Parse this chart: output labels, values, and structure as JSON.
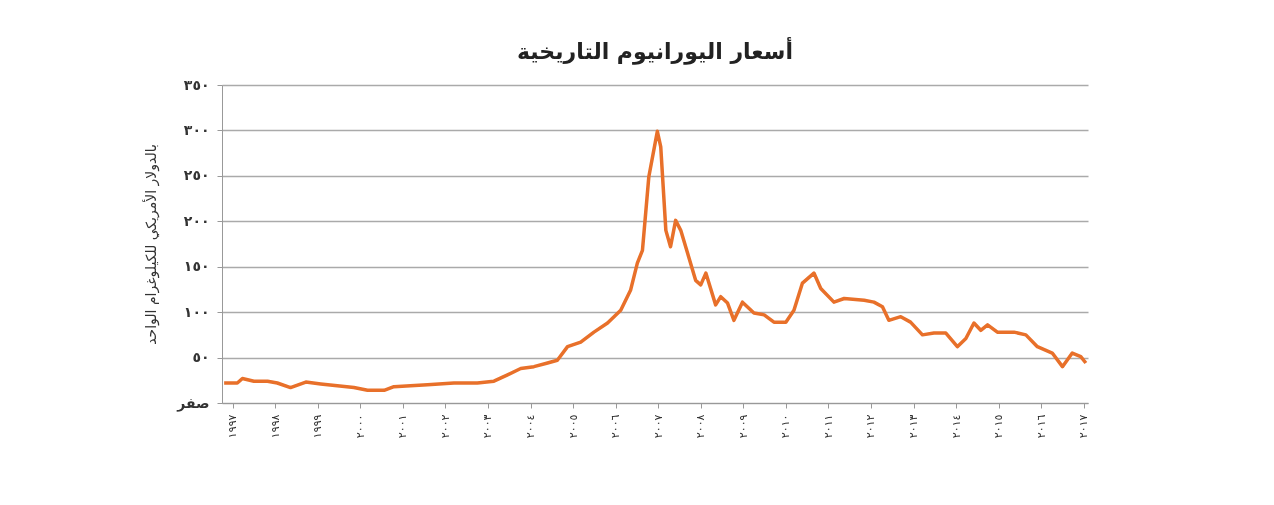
{
  "chart_data": {
    "type": "line",
    "title": "أسعار اليورانيوم التاريخية",
    "ylabel": "بالدولار الأمريكي للكيلوغرام الواحد",
    "x": [
      1996.8,
      1997.11,
      1997.23,
      1997.5,
      1997.82,
      1998.05,
      1998.36,
      1998.72,
      1999.07,
      1999.46,
      1999.85,
      2000.17,
      2000.56,
      2000.79,
      2001.18,
      2001.58,
      2002.2,
      2002.75,
      2003.14,
      2003.46,
      2003.77,
      2004.08,
      2004.4,
      2004.63,
      2004.87,
      2005.18,
      2005.49,
      2005.81,
      2006.12,
      2006.35,
      2006.51,
      2006.63,
      2006.78,
      2006.98,
      2007.06,
      2007.18,
      2007.29,
      2007.41,
      2007.53,
      2007.69,
      2007.88,
      2008.0,
      2008.12,
      2008.35,
      2008.47,
      2008.63,
      2008.78,
      2008.98,
      2009.25,
      2009.49,
      2009.72,
      2010.0,
      2010.19,
      2010.39,
      2010.66,
      2010.82,
      2011.13,
      2011.37,
      2011.84,
      2012.07,
      2012.27,
      2012.42,
      2012.7,
      2012.93,
      2013.21,
      2013.48,
      2013.76,
      2014.03,
      2014.23,
      2014.42,
      2014.58,
      2014.74,
      2014.97,
      2015.36,
      2015.64,
      2015.91,
      2016.26,
      2016.5,
      2016.73,
      2016.93,
      2017.05
    ],
    "values": [
      22,
      22,
      27,
      24,
      24,
      22,
      17,
      23,
      21,
      19,
      17,
      14,
      14,
      18,
      19,
      20,
      22,
      22,
      24,
      31,
      38,
      40,
      44,
      47,
      62,
      67,
      78,
      88,
      102,
      124,
      154,
      168,
      249,
      299,
      282,
      190,
      172,
      201,
      190,
      165,
      135,
      130,
      143,
      108,
      117,
      110,
      91,
      111,
      99,
      97,
      89,
      89,
      102,
      132,
      143,
      126,
      111,
      115,
      113,
      111,
      106,
      91,
      95,
      89,
      75,
      77,
      77,
      62,
      71,
      88,
      80,
      86,
      78,
      78,
      75,
      62,
      55,
      40,
      55,
      51,
      44
    ],
    "color": "#e8702a",
    "xlim": [
      1996.75,
      2017.1
    ],
    "xticks": [
      {
        "value": 1997,
        "label": "١٩٩٧"
      },
      {
        "value": 1998,
        "label": "١٩٩٨"
      },
      {
        "value": 1999,
        "label": "١٩٩٩"
      },
      {
        "value": 2000,
        "label": "٢٠٠٠"
      },
      {
        "value": 2001,
        "label": "٢٠٠١"
      },
      {
        "value": 2002,
        "label": "٢٠٠٢"
      },
      {
        "value": 2003,
        "label": "٢٠٠٣"
      },
      {
        "value": 2004,
        "label": "٢٠٠٤"
      },
      {
        "value": 2005,
        "label": "٢٠٠٥"
      },
      {
        "value": 2006,
        "label": "٢٠٠٦"
      },
      {
        "value": 2007,
        "label": "٢٠٠٧"
      },
      {
        "value": 2008,
        "label": "٢٠٠٨"
      },
      {
        "value": 2009,
        "label": "٢٠٠٩"
      },
      {
        "value": 2010,
        "label": "٢٠١٠"
      },
      {
        "value": 2011,
        "label": "٢٠١١"
      },
      {
        "value": 2012,
        "label": "٢٠١٢"
      },
      {
        "value": 2013,
        "label": "٢٠١٣"
      },
      {
        "value": 2014,
        "label": "٢٠١٤"
      },
      {
        "value": 2015,
        "label": "٢٠١٥"
      },
      {
        "value": 2016,
        "label": "٢٠١٦"
      },
      {
        "value": 2017,
        "label": "٢٠١٧"
      }
    ],
    "ylim": [
      0,
      350
    ],
    "yticks": [
      {
        "value": 0,
        "label": "صفر"
      },
      {
        "value": 50,
        "label": "٥٠"
      },
      {
        "value": 100,
        "label": "١٠٠"
      },
      {
        "value": 150,
        "label": "١٥٠"
      },
      {
        "value": 200,
        "label": "٢٠٠"
      },
      {
        "value": 250,
        "label": "٢٥٠"
      },
      {
        "value": 300,
        "label": "٣٠٠"
      },
      {
        "value": 350,
        "label": "٣٥٠"
      }
    ],
    "grid": "y"
  }
}
